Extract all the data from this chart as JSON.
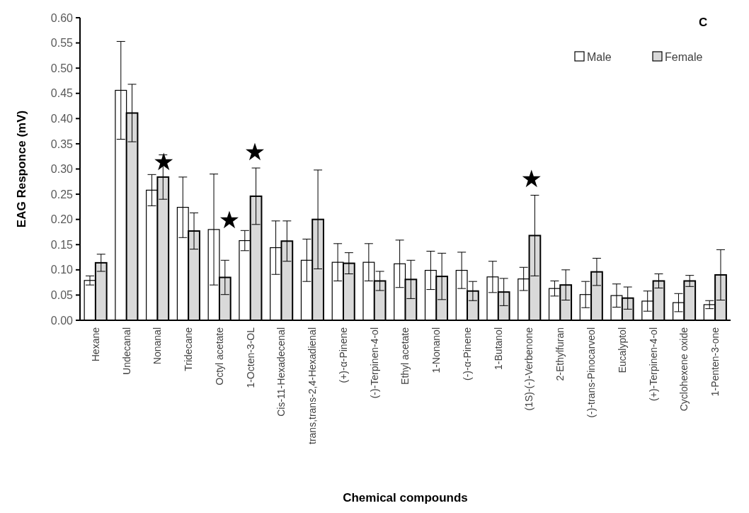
{
  "chart_data": {
    "type": "bar",
    "xlabel": "Chemical compounds",
    "ylabel": "EAG Responce (mV)",
    "categories": [
      "Hexane",
      "Undecanal",
      "Nonanal",
      "Tridecane",
      "Octyl acetate",
      "1-Octen-3-OL",
      "Cis-11-Hexadecenal",
      "trans,trans-2,4-Hexadienal",
      "(+)-α-Pinene",
      "(-)-Terpinen-4-ol",
      "Ethyl acetate",
      "1-Nonanol",
      "(-)-α-Pinene",
      "1-Butanol",
      "(1S)-(-)-Verbenone",
      "2-Ethylfuran",
      "(-)-trans-Pinocarveol",
      "Eucalyptol",
      "(+)-Terpinen-4-ol",
      "Cyclohexene oxide",
      "1-Penten-3-one"
    ],
    "series": [
      {
        "name": "Male",
        "color": "#ffffff",
        "values": [
          0.079,
          0.456,
          0.258,
          0.224,
          0.18,
          0.158,
          0.144,
          0.119,
          0.115,
          0.115,
          0.112,
          0.099,
          0.099,
          0.086,
          0.082,
          0.063,
          0.051,
          0.049,
          0.038,
          0.035,
          0.031
        ],
        "errors": [
          0.009,
          0.097,
          0.031,
          0.06,
          0.11,
          0.02,
          0.053,
          0.042,
          0.037,
          0.037,
          0.047,
          0.038,
          0.036,
          0.031,
          0.023,
          0.015,
          0.026,
          0.023,
          0.02,
          0.018,
          0.008
        ]
      },
      {
        "name": "Female",
        "color": "#d9d9d9",
        "values": [
          0.114,
          0.411,
          0.284,
          0.177,
          0.085,
          0.246,
          0.157,
          0.2,
          0.113,
          0.078,
          0.081,
          0.087,
          0.058,
          0.056,
          0.168,
          0.07,
          0.096,
          0.044,
          0.078,
          0.078,
          0.09
        ],
        "errors": [
          0.017,
          0.057,
          0.044,
          0.036,
          0.034,
          0.056,
          0.04,
          0.098,
          0.021,
          0.019,
          0.038,
          0.046,
          0.019,
          0.027,
          0.08,
          0.03,
          0.027,
          0.022,
          0.014,
          0.011,
          0.05
        ]
      }
    ],
    "ylim": [
      0,
      0.6
    ],
    "yticks": [
      {
        "value": 0,
        "label": "0.00"
      },
      {
        "value": 0.05,
        "label": "0.05"
      },
      {
        "value": 0.1,
        "label": "0.10"
      },
      {
        "value": 0.15,
        "label": "0.15"
      },
      {
        "value": 0.2,
        "label": "0.20"
      },
      {
        "value": 0.25,
        "label": "0.25"
      },
      {
        "value": 0.3,
        "label": "0.30"
      },
      {
        "value": 0.35,
        "label": "0.35"
      },
      {
        "value": 0.4,
        "label": "0.40"
      },
      {
        "value": 0.45,
        "label": "0.45"
      },
      {
        "value": 0.5,
        "label": "0.50"
      },
      {
        "value": 0.55,
        "label": "0.55"
      },
      {
        "value": 0.6,
        "label": "0.60"
      }
    ],
    "grid": false,
    "legend": "top right",
    "annotations": [
      "C",
      "★",
      "★",
      "★",
      "★"
    ]
  }
}
